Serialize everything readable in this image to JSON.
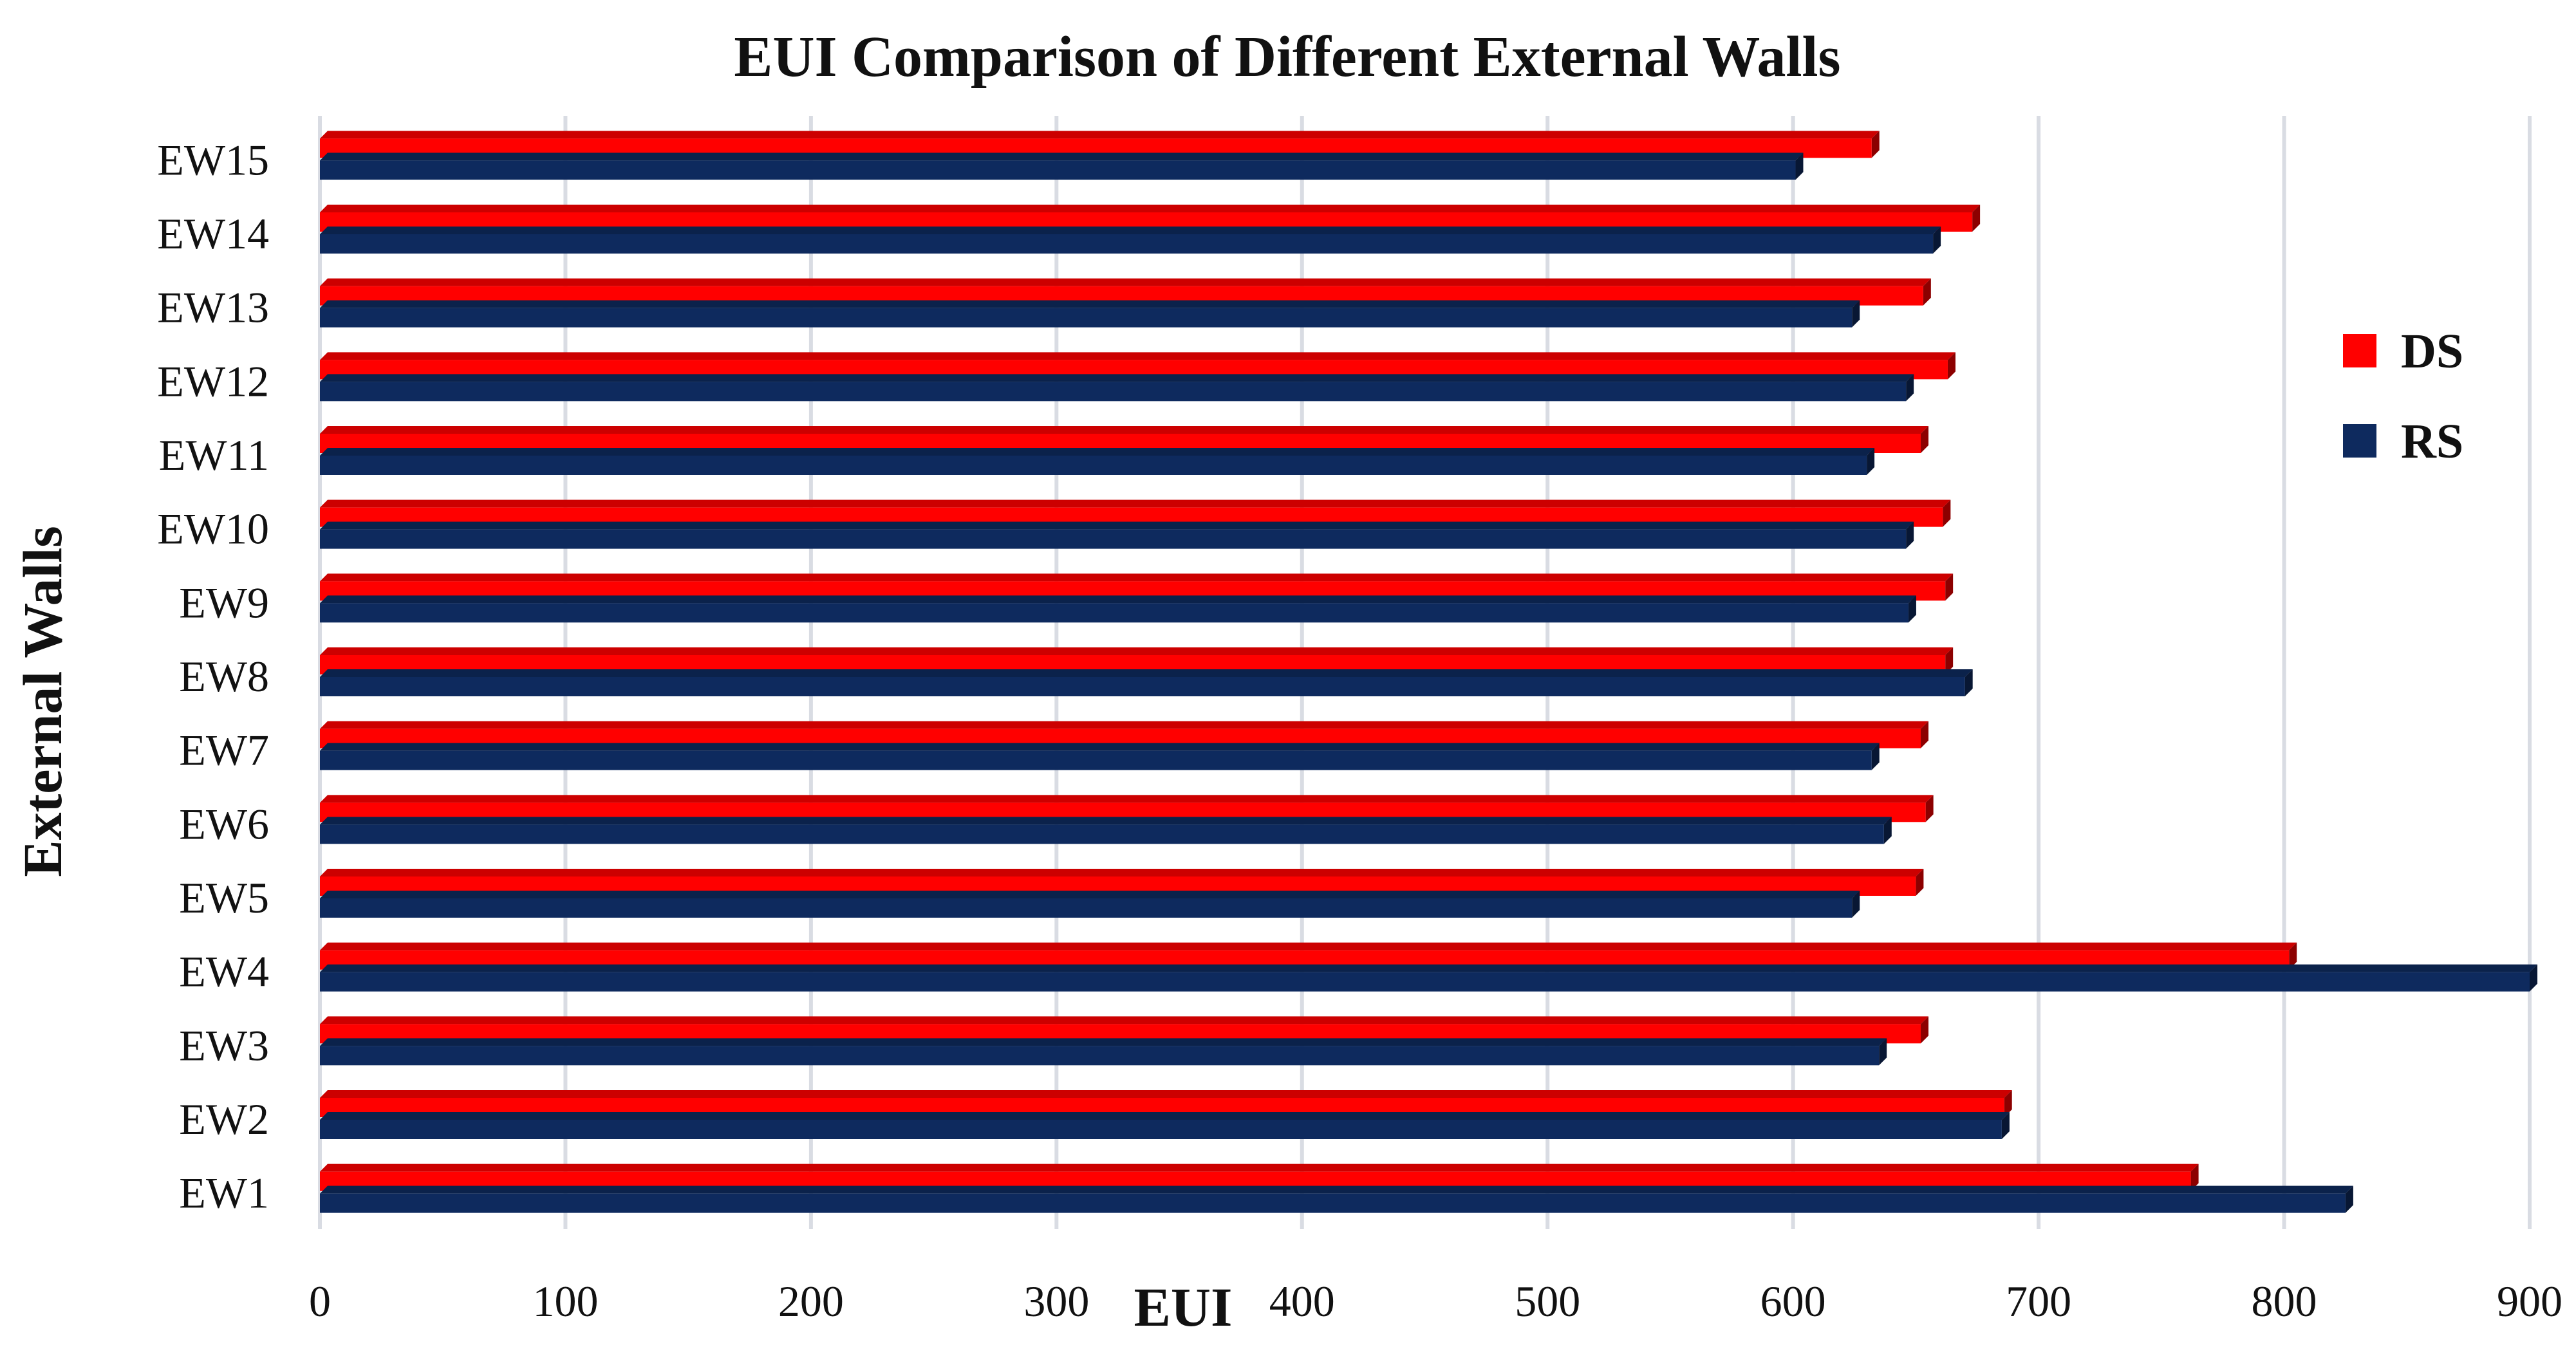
{
  "chart_data": {
    "type": "bar",
    "orientation": "horizontal",
    "title": "EUI Comparison of Different External Walls",
    "xlabel": "EUI",
    "ylabel": "External Walls",
    "xlim": [
      0,
      900
    ],
    "xticks": [
      0,
      100,
      200,
      300,
      400,
      500,
      600,
      700,
      800,
      900
    ],
    "grid": true,
    "legend_position": "right",
    "categories": [
      "EW1",
      "EW2",
      "EW3",
      "EW4",
      "EW5",
      "EW6",
      "EW7",
      "EW8",
      "EW9",
      "EW10",
      "EW11",
      "EW12",
      "EW13",
      "EW14",
      "EW15"
    ],
    "series": [
      {
        "name": "DS",
        "color": "#ff0000",
        "values": [
          762,
          686,
          652,
          802,
          650,
          654,
          652,
          662,
          662,
          661,
          652,
          663,
          653,
          673,
          632
        ]
      },
      {
        "name": "RS",
        "color": "#0e2a5e",
        "values": [
          825,
          685,
          635,
          900,
          624,
          637,
          632,
          670,
          647,
          646,
          630,
          646,
          624,
          657,
          601
        ]
      }
    ]
  }
}
